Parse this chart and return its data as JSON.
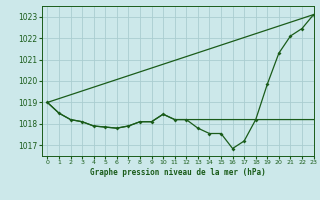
{
  "title": "Graphe pression niveau de la mer (hPa)",
  "background_color": "#cce8ea",
  "grid_color": "#aacdd0",
  "line_color": "#1a5c1a",
  "xlim": [
    -0.5,
    23
  ],
  "ylim": [
    1016.5,
    1023.5
  ],
  "yticks": [
    1017,
    1018,
    1019,
    1020,
    1021,
    1022,
    1023
  ],
  "xticks": [
    0,
    1,
    2,
    3,
    4,
    5,
    6,
    7,
    8,
    9,
    10,
    11,
    12,
    13,
    14,
    15,
    16,
    17,
    18,
    19,
    20,
    21,
    22,
    23
  ],
  "series1_x": [
    0,
    1,
    2,
    3,
    4,
    5,
    6,
    7,
    8,
    9,
    10,
    11,
    12,
    13,
    14,
    15,
    16,
    17,
    18,
    19,
    20,
    21,
    22,
    23
  ],
  "series1_y": [
    1019.0,
    1018.5,
    1018.2,
    1018.1,
    1017.9,
    1017.85,
    1017.8,
    1017.9,
    1018.1,
    1018.1,
    1018.45,
    1018.2,
    1018.2,
    1017.8,
    1017.55,
    1017.55,
    1016.85,
    1017.2,
    1018.2,
    1019.85,
    1021.3,
    1022.1,
    1022.45,
    1023.1
  ],
  "series2_x": [
    0,
    1,
    2,
    3,
    4,
    5,
    6,
    7,
    8,
    9,
    10,
    11,
    12,
    13,
    14,
    15,
    16,
    17,
    18,
    19,
    20,
    21,
    22,
    23
  ],
  "series2_y": [
    1019.0,
    1018.5,
    1018.2,
    1018.1,
    1017.9,
    1017.85,
    1017.8,
    1017.9,
    1018.1,
    1018.1,
    1018.45,
    1018.2,
    1018.2,
    1018.2,
    1018.2,
    1018.2,
    1018.2,
    1018.2,
    1018.2,
    1018.2,
    1018.2,
    1018.2,
    1018.2,
    1018.2
  ],
  "series3_x": [
    0,
    23
  ],
  "series3_y": [
    1019.0,
    1023.1
  ]
}
